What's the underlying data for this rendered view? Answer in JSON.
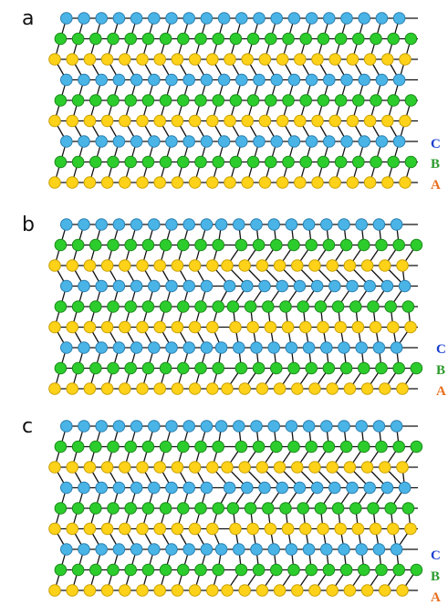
{
  "panels": [
    {
      "label": "a",
      "stacking": [
        "C",
        "B",
        "A"
      ]
    },
    {
      "label": "b",
      "stacking": [
        "C",
        "B",
        "A"
      ]
    },
    {
      "label": "c",
      "stacking": [
        "C",
        "B",
        "A"
      ]
    }
  ]
}
